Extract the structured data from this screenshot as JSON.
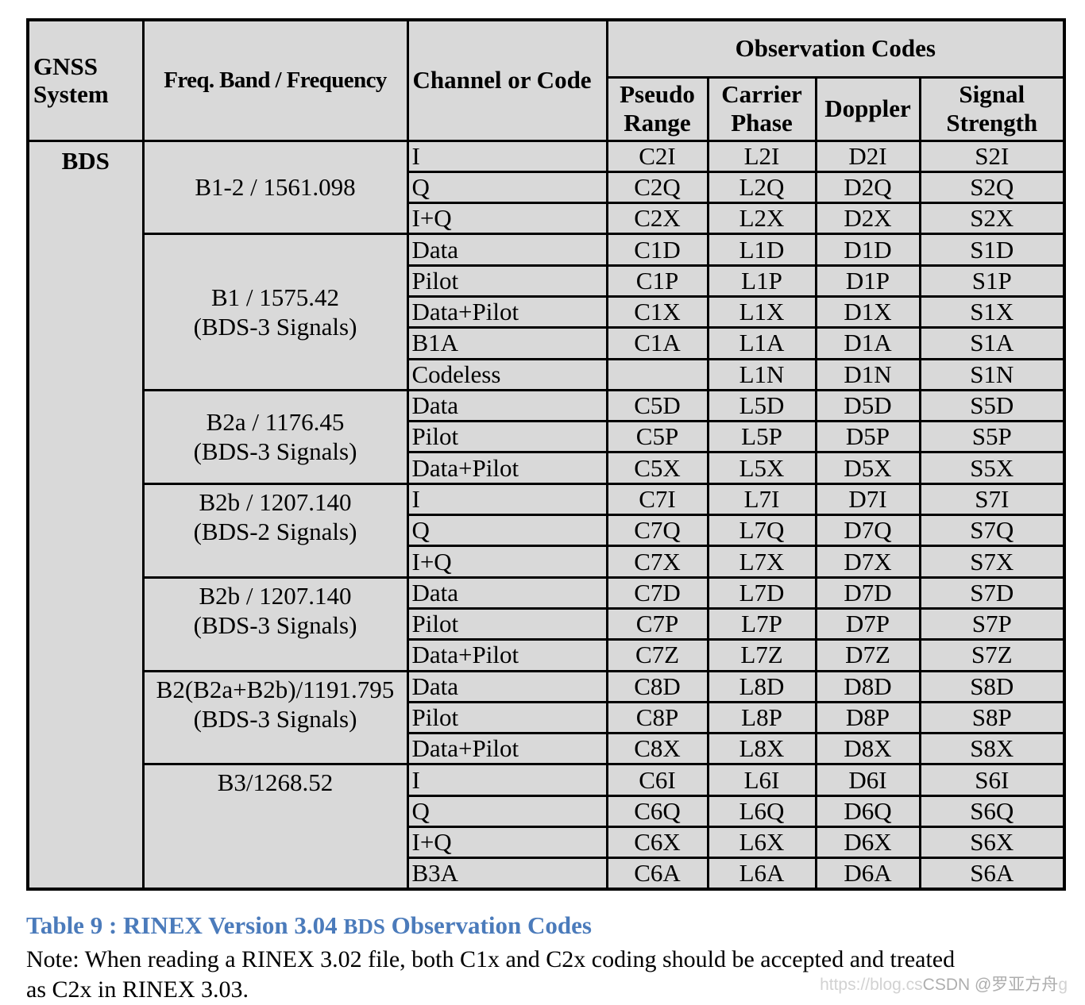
{
  "table": {
    "headers": {
      "gnss_system": "GNSS System",
      "freq_band": "Freq. Band / Frequency",
      "channel_or_code": "Channel or Code",
      "observation_codes": "Observation Codes",
      "sub": [
        "Pseudo Range",
        "Carrier Phase",
        "Doppler",
        "Signal Strength"
      ]
    },
    "system": "BDS",
    "bands": [
      {
        "band": "B1-2 / 1561.098",
        "band2": "",
        "valign": "middle",
        "rows": [
          {
            "channel": "I",
            "codes": [
              "C2I",
              "L2I",
              "D2I",
              "S2I"
            ]
          },
          {
            "channel": "Q",
            "codes": [
              "C2Q",
              "L2Q",
              "D2Q",
              "S2Q"
            ]
          },
          {
            "channel": "I+Q",
            "codes": [
              "C2X",
              "L2X",
              "D2X",
              "S2X"
            ]
          }
        ]
      },
      {
        "band": "B1 / 1575.42",
        "band2": "(BDS-3 Signals)",
        "valign": "middle",
        "rows": [
          {
            "channel": "Data",
            "codes": [
              "C1D",
              "L1D",
              "D1D",
              "S1D"
            ]
          },
          {
            "channel": "Pilot",
            "codes": [
              "C1P",
              "L1P",
              "D1P",
              "S1P"
            ]
          },
          {
            "channel": "Data+Pilot",
            "codes": [
              "C1X",
              "L1X",
              "D1X",
              "S1X"
            ]
          },
          {
            "channel": "B1A",
            "codes": [
              "C1A",
              "L1A",
              "D1A",
              "S1A"
            ]
          },
          {
            "channel": "Codeless",
            "codes": [
              "",
              "L1N",
              "D1N",
              "S1N"
            ]
          }
        ]
      },
      {
        "band": "B2a / 1176.45",
        "band2": "(BDS-3 Signals)",
        "valign": "middle",
        "rows": [
          {
            "channel": "Data",
            "codes": [
              "C5D",
              "L5D",
              "D5D",
              "S5D"
            ]
          },
          {
            "channel": "Pilot",
            "codes": [
              "C5P",
              "L5P",
              "D5P",
              "S5P"
            ]
          },
          {
            "channel": "Data+Pilot",
            "codes": [
              "C5X",
              "L5X",
              "D5X",
              "S5X"
            ]
          }
        ]
      },
      {
        "band": "B2b / 1207.140",
        "band2": "(BDS-2 Signals)",
        "valign": "top",
        "rows": [
          {
            "channel": "I",
            "codes": [
              "C7I",
              "L7I",
              "D7I",
              "S7I"
            ]
          },
          {
            "channel": "Q",
            "codes": [
              "C7Q",
              "L7Q",
              "D7Q",
              "S7Q"
            ]
          },
          {
            "channel": "I+Q",
            "codes": [
              "C7X",
              "L7X",
              "D7X",
              "S7X"
            ]
          }
        ]
      },
      {
        "band": "B2b / 1207.140",
        "band2": "(BDS-3 Signals)",
        "valign": "top",
        "rows": [
          {
            "channel": "Data",
            "codes": [
              "C7D",
              "L7D",
              "D7D",
              "S7D"
            ]
          },
          {
            "channel": "Pilot",
            "codes": [
              "C7P",
              "L7P",
              "D7P",
              "S7P"
            ]
          },
          {
            "channel": "Data+Pilot",
            "codes": [
              "C7Z",
              "L7Z",
              "D7Z",
              "S7Z"
            ]
          }
        ]
      },
      {
        "band": "B2(B2a+B2b)/1191.795",
        "band2": "(BDS-3 Signals)",
        "valign": "top",
        "rows": [
          {
            "channel": "Data",
            "codes": [
              "C8D",
              "L8D",
              "D8D",
              "S8D"
            ]
          },
          {
            "channel": "Pilot",
            "codes": [
              "C8P",
              "L8P",
              "D8P",
              "S8P"
            ]
          },
          {
            "channel": "Data+Pilot",
            "codes": [
              "C8X",
              "L8X",
              "D8X",
              "S8X"
            ]
          }
        ]
      },
      {
        "band": "B3/1268.52",
        "band2": "",
        "valign": "top",
        "rows": [
          {
            "channel": "I",
            "codes": [
              "C6I",
              "L6I",
              "D6I",
              "S6I"
            ]
          },
          {
            "channel": "Q",
            "codes": [
              "C6Q",
              "L6Q",
              "D6Q",
              "S6Q"
            ]
          },
          {
            "channel": "I+Q",
            "codes": [
              "C6X",
              "L6X",
              "D6X",
              "S6X"
            ]
          },
          {
            "channel": "B3A",
            "codes": [
              "C6A",
              "L6A",
              "D6A",
              "S6A"
            ]
          }
        ]
      }
    ]
  },
  "caption": {
    "part1": "Table 9 : RINEX Version 3.04 ",
    "part2": "BDS",
    "part3": " Observation Codes"
  },
  "note": {
    "line1": "Note: When reading a RINEX 3.02 file, both C1x and C2x coding should be accepted and treated",
    "line2": "as C2x in RINEX 3.03."
  },
  "watermark": {
    "light_prefix": "https://blog.cs",
    "dark": "CSDN @罗亚方舟",
    "light_suffix": "g"
  },
  "colors": {
    "cell_background": "#d9d9d9",
    "border": "#000000",
    "caption_blue": "#4b7bbb",
    "watermark_light": "#d2d2d2",
    "watermark_dark": "#aeaeae"
  }
}
